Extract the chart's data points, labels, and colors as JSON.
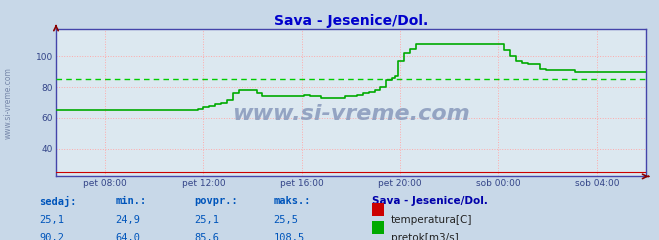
{
  "title": "Sava - Jesenice/Dol.",
  "title_color": "#0000cc",
  "bg_color": "#c8d8e8",
  "plot_bg_color": "#dce8f0",
  "grid_color": "#ffaaaa",
  "border_color": "#4444aa",
  "x_labels": [
    "pet 08:00",
    "pet 12:00",
    "pet 16:00",
    "pet 20:00",
    "sob 00:00",
    "sob 04:00"
  ],
  "x_ticks_norm": [
    0.083,
    0.25,
    0.417,
    0.583,
    0.75,
    0.917
  ],
  "y_ticks": [
    40,
    60,
    80,
    100
  ],
  "ylim": [
    22,
    118
  ],
  "xlim": [
    0,
    1
  ],
  "watermark": "www.si-vreme.com",
  "watermark_color": "#8899bb",
  "temp_color": "#cc0000",
  "flow_color": "#00aa00",
  "avg_line_color": "#00cc00",
  "avg_flow": 85.6,
  "legend_title": "Sava - Jesenice/Dol.",
  "legend_color": "#0000aa",
  "stats_labels": [
    "sedaj:",
    "min.:",
    "povpr.:",
    "maks.:"
  ],
  "stats_color": "#0055bb",
  "temp_stats": [
    "25,1",
    "24,9",
    "25,1",
    "25,5"
  ],
  "flow_stats": [
    "90,2",
    "64,0",
    "85,6",
    "108,5"
  ],
  "temp_label": "temperatura[C]",
  "flow_label": "pretok[m3/s]",
  "flow_data_x": [
    0.0,
    0.02,
    0.04,
    0.05,
    0.06,
    0.07,
    0.083,
    0.1,
    0.12,
    0.14,
    0.16,
    0.18,
    0.2,
    0.22,
    0.24,
    0.25,
    0.26,
    0.27,
    0.28,
    0.29,
    0.3,
    0.31,
    0.32,
    0.33,
    0.34,
    0.35,
    0.36,
    0.37,
    0.38,
    0.39,
    0.4,
    0.41,
    0.42,
    0.43,
    0.44,
    0.45,
    0.46,
    0.47,
    0.48,
    0.49,
    0.5,
    0.51,
    0.52,
    0.53,
    0.54,
    0.55,
    0.56,
    0.57,
    0.575,
    0.58,
    0.59,
    0.6,
    0.61,
    0.62,
    0.63,
    0.64,
    0.65,
    0.66,
    0.67,
    0.68,
    0.69,
    0.7,
    0.71,
    0.72,
    0.73,
    0.74,
    0.75,
    0.76,
    0.77,
    0.78,
    0.79,
    0.8,
    0.81,
    0.82,
    0.83,
    0.84,
    0.85,
    0.86,
    0.87,
    0.88,
    0.89,
    0.9,
    0.91,
    0.92,
    0.93,
    0.94,
    0.95,
    0.96,
    0.97,
    0.98,
    0.99,
    1.0
  ],
  "flow_data_y": [
    65,
    65,
    65,
    65,
    65,
    65,
    65,
    65,
    65,
    65,
    65,
    65,
    65,
    65,
    66,
    67,
    68,
    69,
    70,
    72,
    76,
    78,
    78,
    78,
    76,
    74,
    74,
    74,
    74,
    74,
    74,
    74,
    75,
    74,
    74,
    73,
    73,
    73,
    73,
    74,
    74,
    75,
    76,
    77,
    78,
    80,
    85,
    86,
    87,
    97,
    102,
    105,
    108,
    108,
    108,
    108,
    108,
    108,
    108,
    108,
    108,
    108,
    108,
    108,
    108,
    108,
    108,
    104,
    100,
    97,
    96,
    95,
    95,
    92,
    91,
    91,
    91,
    91,
    91,
    90,
    90,
    90,
    90,
    90,
    90,
    90,
    90,
    90,
    90,
    90,
    90,
    90
  ],
  "temp_data_x": [
    0.0,
    0.3,
    0.45,
    0.46,
    0.5,
    0.7,
    1.0
  ],
  "temp_data_y": [
    25,
    25,
    25,
    25,
    25,
    25,
    25
  ],
  "side_label": "www.si-vreme.com",
  "side_label_color": "#7788aa",
  "tick_color": "#334488",
  "arrow_color": "#880000"
}
